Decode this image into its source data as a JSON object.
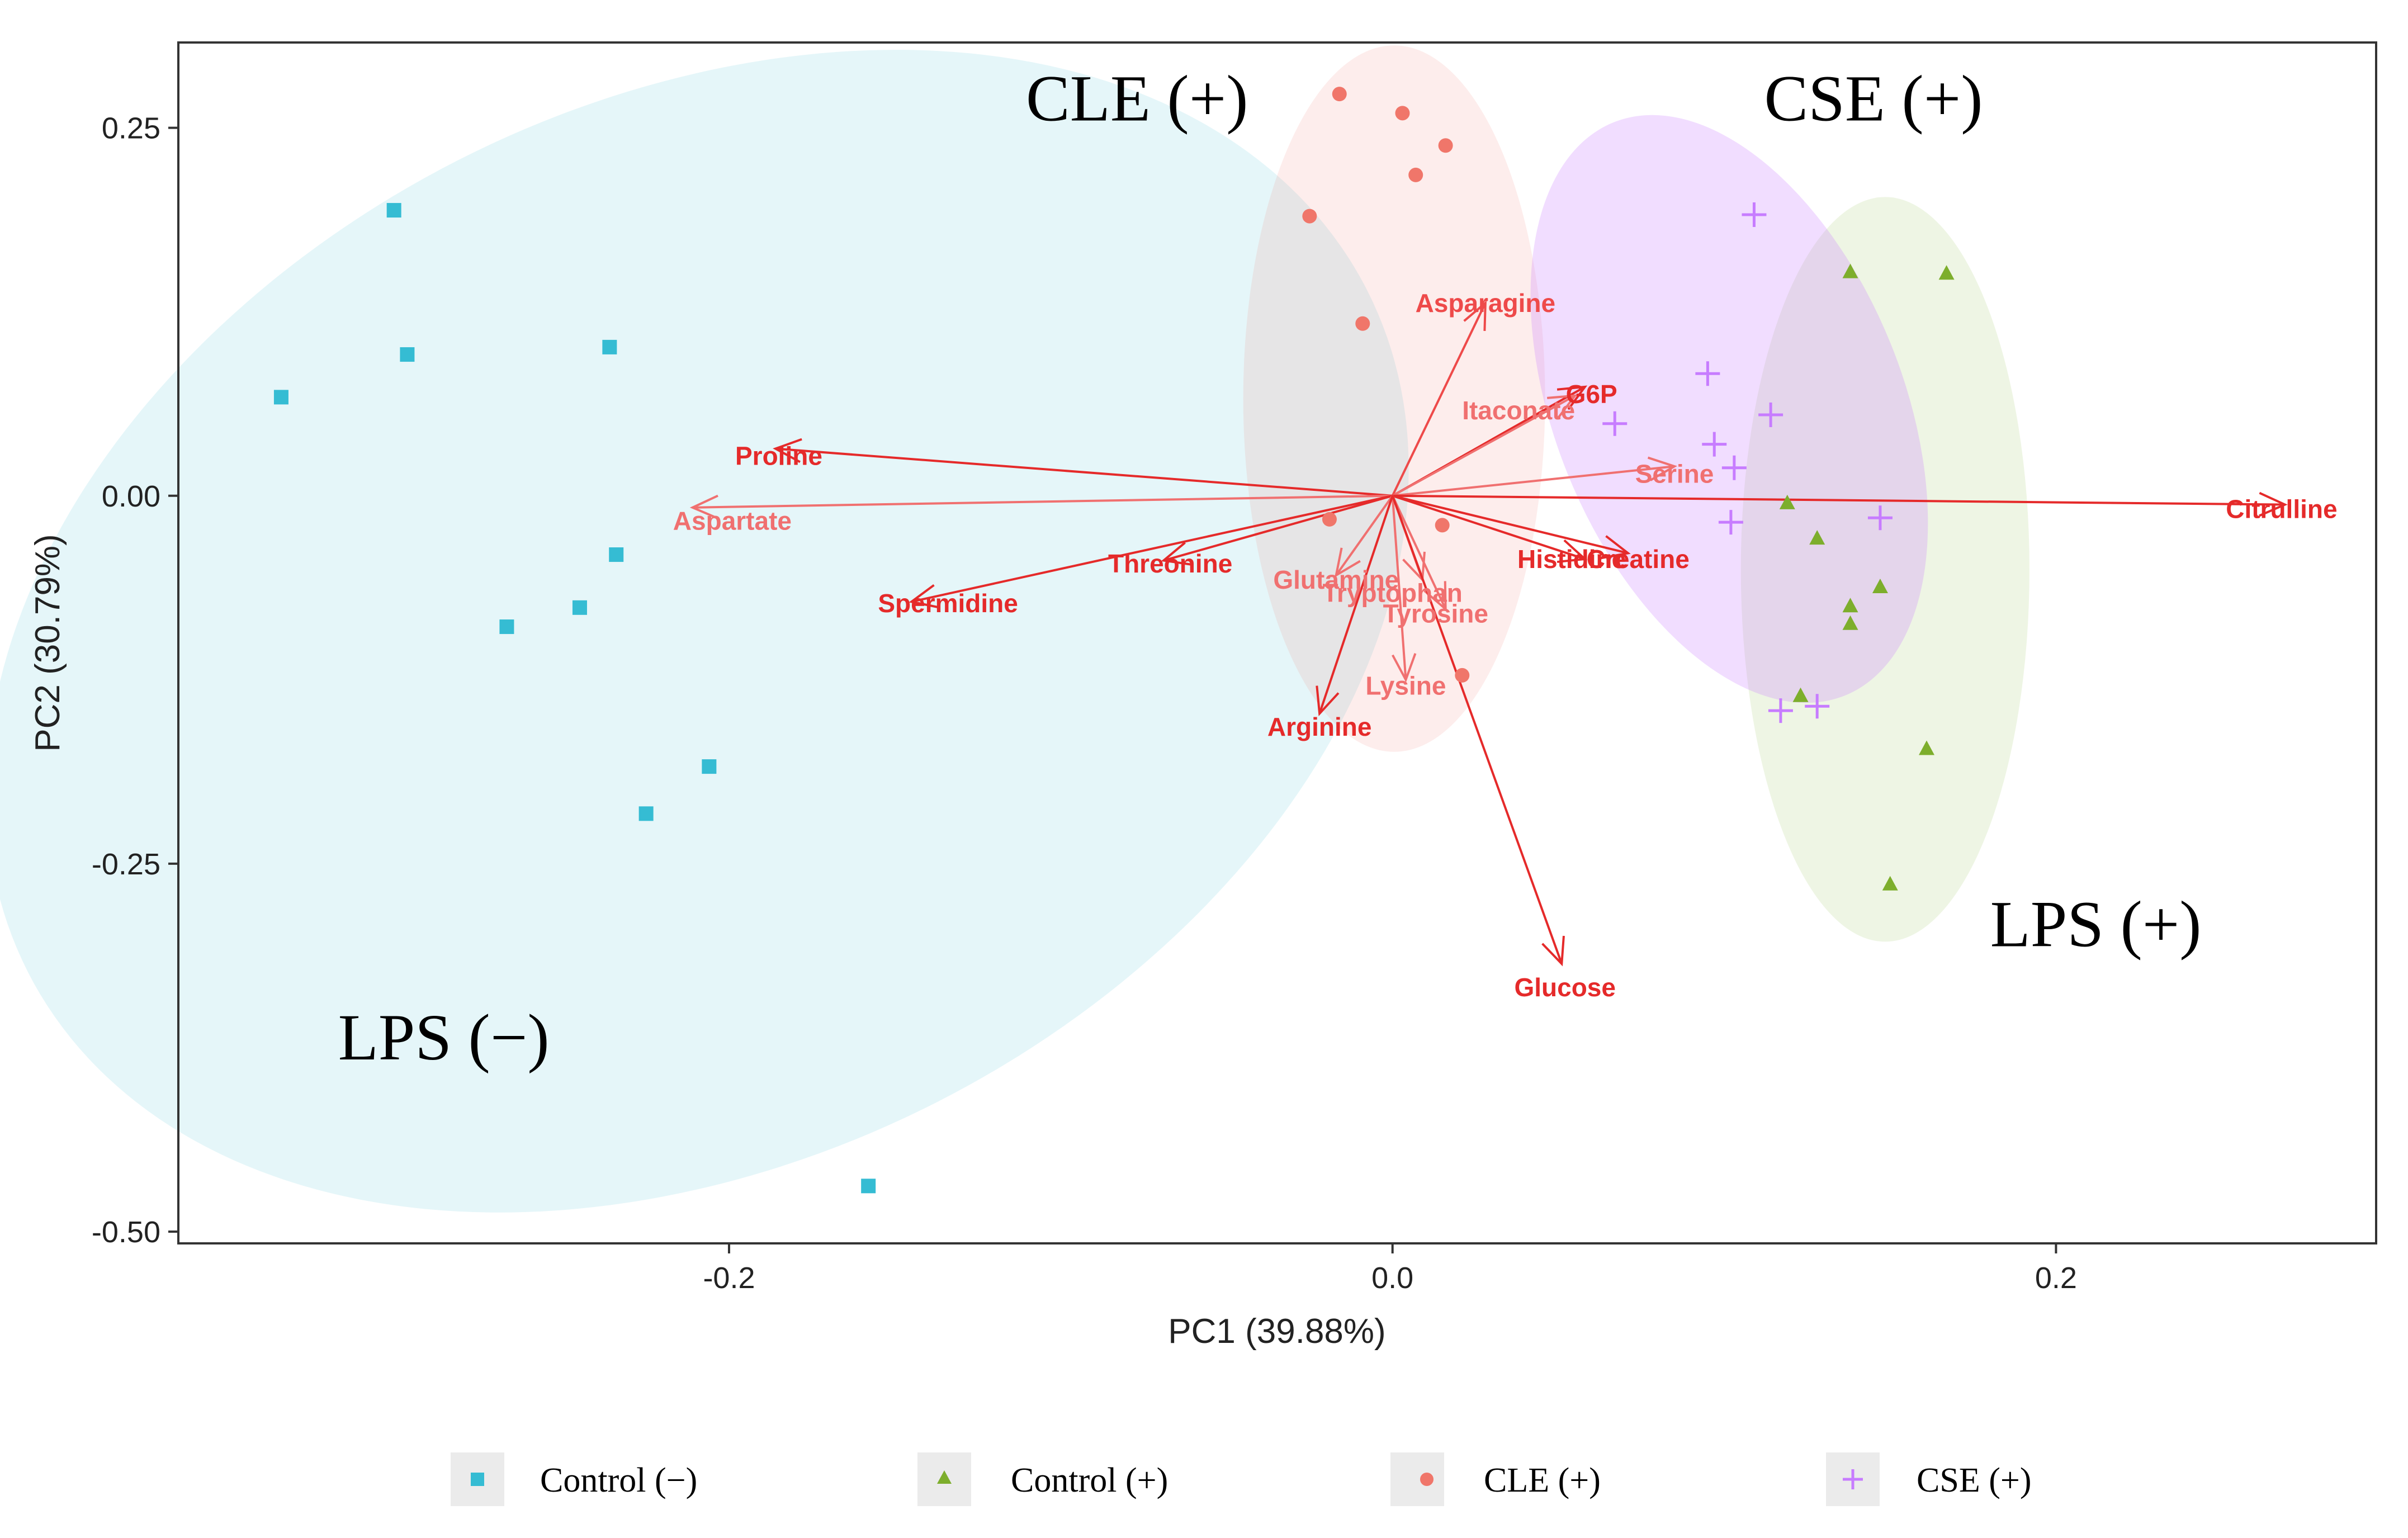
{
  "chart_data": {
    "type": "scatter",
    "subtype": "pca-biplot",
    "xlabel": "PC1 (39.88%)",
    "ylabel": "PC2 (30.79%)",
    "xlim": [
      -0.366,
      0.2965
    ],
    "ylim": [
      -0.508,
      0.308
    ],
    "xticks": [
      {
        "value": -0.2,
        "label": "-0.2"
      },
      {
        "value": 0.0,
        "label": "0.0"
      },
      {
        "value": 0.2,
        "label": "0.2"
      }
    ],
    "yticks": [
      {
        "value": 0.25,
        "label": "0.25"
      },
      {
        "value": 0.0,
        "label": "0.00"
      },
      {
        "value": -0.25,
        "label": "-0.25"
      },
      {
        "value": -0.5,
        "label": "-0.50"
      }
    ],
    "grid": false,
    "legend_position": "bottom",
    "series": [
      {
        "name": "Control (−)",
        "color": "#35BCD3",
        "marker": "square",
        "points": [
          [
            -0.335,
            0.067
          ],
          [
            -0.301,
            0.194
          ],
          [
            -0.297,
            0.096
          ],
          [
            -0.236,
            0.101
          ],
          [
            -0.234,
            -0.04
          ],
          [
            -0.245,
            -0.076
          ],
          [
            -0.267,
            -0.089
          ],
          [
            -0.206,
            -0.184
          ],
          [
            -0.225,
            -0.216
          ],
          [
            -0.158,
            -0.469
          ]
        ],
        "ellipse": {
          "cx": -0.2095,
          "cy": -0.092,
          "rx": 0.2265,
          "ry": 0.359
        }
      },
      {
        "name": "Control (+)",
        "color": "#7DAE2C",
        "marker": "triangle",
        "points": [
          [
            0.138,
            0.152
          ],
          [
            0.167,
            0.151
          ],
          [
            0.119,
            -0.005
          ],
          [
            0.128,
            -0.029
          ],
          [
            0.147,
            -0.062
          ],
          [
            0.138,
            -0.075
          ],
          [
            0.138,
            -0.087
          ],
          [
            0.123,
            -0.136
          ],
          [
            0.161,
            -0.172
          ],
          [
            0.15,
            -0.264
          ]
        ],
        "ellipse": {
          "cx": 0.1485,
          "cy": -0.05,
          "rx": 0.0435,
          "ry": 0.253
        }
      },
      {
        "name": "CLE (+)",
        "color": "#F0766A",
        "marker": "circle",
        "points": [
          [
            -0.016,
            0.273
          ],
          [
            0.003,
            0.26
          ],
          [
            0.016,
            0.238
          ],
          [
            0.007,
            0.218
          ],
          [
            -0.025,
            0.19
          ],
          [
            -0.009,
            0.117
          ],
          [
            -0.019,
            -0.016
          ],
          [
            0.015,
            -0.02
          ],
          [
            0.021,
            -0.122
          ]
        ],
        "ellipse": {
          "cx": 0.0005,
          "cy": 0.066,
          "rx": 0.0455,
          "ry": 0.24
        }
      },
      {
        "name": "CSE (+)",
        "color": "#C77CFF",
        "marker": "cross",
        "points": [
          [
            0.109,
            0.191
          ],
          [
            0.095,
            0.083
          ],
          [
            0.114,
            0.055
          ],
          [
            0.067,
            0.049
          ],
          [
            0.097,
            0.035
          ],
          [
            0.103,
            0.019
          ],
          [
            0.102,
            -0.018
          ],
          [
            0.147,
            -0.015
          ],
          [
            0.117,
            -0.146
          ],
          [
            0.128,
            -0.143
          ]
        ],
        "ellipse": {
          "cx": 0.1015,
          "cy": 0.059,
          "rx": 0.0525,
          "ry": 0.21
        }
      }
    ],
    "loadings": [
      {
        "name": "Asparagine",
        "x": 0.028,
        "y": 0.131,
        "lx": 0.028,
        "ly": 0.131,
        "color": "#EE4A4A"
      },
      {
        "name": "G6P",
        "x": 0.058,
        "y": 0.074,
        "lx": 0.06,
        "ly": 0.069,
        "color": "#E52A2A"
      },
      {
        "name": "Itaconate",
        "x": 0.055,
        "y": 0.068,
        "lx": 0.038,
        "ly": 0.058,
        "color": "#F07070"
      },
      {
        "name": "Proline",
        "x": -0.186,
        "y": 0.032,
        "lx": -0.185,
        "ly": 0.027,
        "color": "#E52A2A"
      },
      {
        "name": "Aspartate",
        "x": -0.211,
        "y": -0.008,
        "lx": -0.199,
        "ly": -0.017,
        "color": "#F07070"
      },
      {
        "name": "Serine",
        "x": 0.085,
        "y": 0.02,
        "lx": 0.085,
        "ly": 0.015,
        "color": "#F07070"
      },
      {
        "name": "Citrulline",
        "x": 0.269,
        "y": -0.006,
        "lx": 0.268,
        "ly": -0.009,
        "color": "#E52A2A"
      },
      {
        "name": "Histidine",
        "x": 0.058,
        "y": -0.043,
        "lx": 0.054,
        "ly": -0.043,
        "color": "#E52A2A"
      },
      {
        "name": "Creatine",
        "x": 0.071,
        "y": -0.039,
        "lx": 0.074,
        "ly": -0.043,
        "color": "#E52A2A"
      },
      {
        "name": "Threonine",
        "x": -0.069,
        "y": -0.044,
        "lx": -0.067,
        "ly": -0.046,
        "color": "#E52A2A"
      },
      {
        "name": "Spermidine",
        "x": -0.145,
        "y": -0.072,
        "lx": -0.134,
        "ly": -0.073,
        "color": "#E52A2A"
      },
      {
        "name": "Glutamine",
        "x": -0.017,
        "y": -0.054,
        "lx": -0.017,
        "ly": -0.057,
        "color": "#F07070"
      },
      {
        "name": "Tryptophan",
        "x": 0.009,
        "y": -0.057,
        "lx": 0.0,
        "ly": -0.066,
        "color": "#F07070"
      },
      {
        "name": "Tyrosine",
        "x": 0.016,
        "y": -0.077,
        "lx": 0.013,
        "ly": -0.08,
        "color": "#F07070"
      },
      {
        "name": "Lysine",
        "x": 0.004,
        "y": -0.125,
        "lx": 0.004,
        "ly": -0.129,
        "color": "#F07070"
      },
      {
        "name": "Arginine",
        "x": -0.022,
        "y": -0.148,
        "lx": -0.022,
        "ly": -0.157,
        "color": "#E52A2A"
      },
      {
        "name": "Glucose",
        "x": 0.051,
        "y": -0.318,
        "lx": 0.052,
        "ly": -0.334,
        "color": "#E52A2A"
      }
    ],
    "group_annotations": [
      {
        "text": "CLE (+)",
        "x": -0.077,
        "y": 0.255
      },
      {
        "text": "CSE (+)",
        "x": 0.145,
        "y": 0.255
      },
      {
        "text": "LPS (+)",
        "x": 0.212,
        "y": -0.306
      },
      {
        "text": "LPS (−)",
        "x": -0.286,
        "y": -0.383
      }
    ]
  }
}
